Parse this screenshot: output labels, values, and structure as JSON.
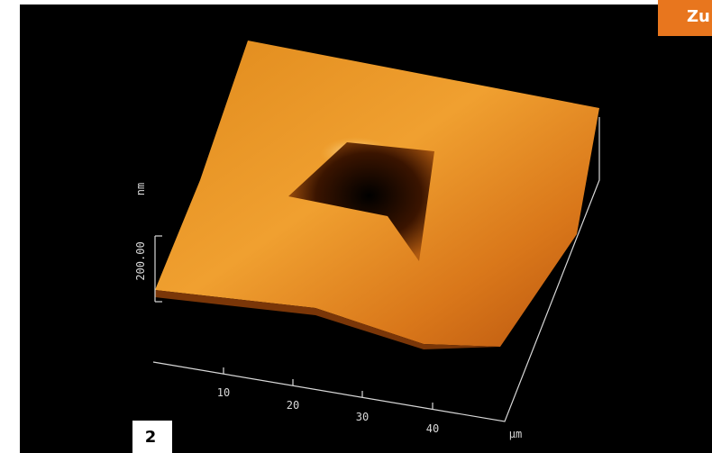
{
  "tab": "Zu",
  "figure_label": "2",
  "axis": {
    "z_value": "200.00",
    "z_unit": "nm",
    "x_ticks": [
      "10",
      "20",
      "30",
      "40"
    ],
    "x_unit": "µm"
  }
}
